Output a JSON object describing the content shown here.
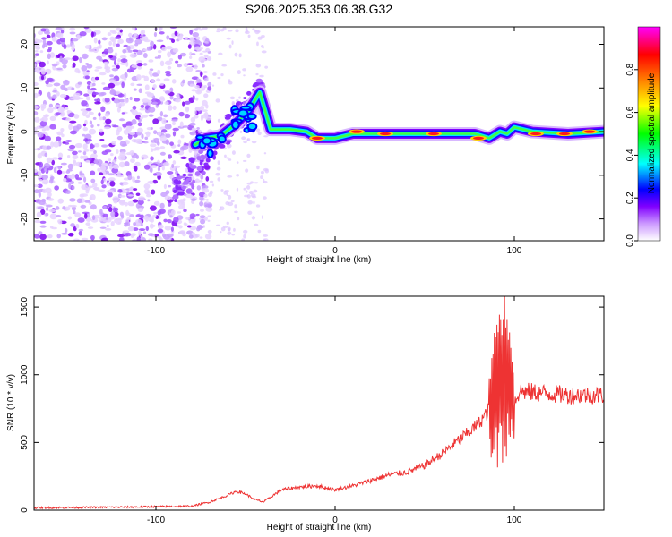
{
  "title": "S206.2025.353.06.38.G32",
  "chart_data": [
    {
      "type": "heatmap",
      "name": "spectrogram",
      "xlabel": "Height of straight line (km)",
      "ylabel": "Frequency (Hz)",
      "xlim": [
        -168,
        150
      ],
      "ylim": [
        -25,
        24
      ],
      "xticks": [
        -100,
        0,
        100
      ],
      "xtick_labels": [
        "-100",
        "0",
        "100"
      ],
      "yticks": [
        -20,
        -10,
        0,
        10,
        20
      ],
      "ytick_labels": [
        "-20",
        "-10",
        "0",
        "10",
        "20"
      ],
      "colorbar": {
        "label": "Normalized spectral amplitude",
        "range": [
          0.0,
          1.0
        ],
        "ticks": [
          0.0,
          0.2,
          0.4,
          0.6,
          0.8
        ],
        "tick_labels": [
          "0.0",
          "0.2",
          "0.4",
          "0.6",
          "0.8"
        ],
        "stops": [
          "#ffffff",
          "#8000ff",
          "#0000ff",
          "#00ffff",
          "#00ff00",
          "#ffff00",
          "#ff8000",
          "#ff0000",
          "#ff00ff"
        ]
      },
      "noise_region_km": [
        -168,
        -78
      ],
      "transition_region_km": [
        -78,
        -38
      ],
      "signal_track": [
        {
          "x": -78,
          "f": -3.0
        },
        {
          "x": -72,
          "f": -1.5
        },
        {
          "x": -64,
          "f": -1.0
        },
        {
          "x": -56,
          "f": 1.5
        },
        {
          "x": -48,
          "f": 5.0
        },
        {
          "x": -42,
          "f": 9.0
        },
        {
          "x": -36,
          "f": 0.5
        },
        {
          "x": -25,
          "f": 0.5
        },
        {
          "x": -16,
          "f": 0.0
        },
        {
          "x": -10,
          "f": -1.5
        },
        {
          "x": 0,
          "f": -1.5
        },
        {
          "x": 10,
          "f": -0.5
        },
        {
          "x": 30,
          "f": -0.5
        },
        {
          "x": 60,
          "f": -0.5
        },
        {
          "x": 78,
          "f": -0.5
        },
        {
          "x": 86,
          "f": -1.5
        },
        {
          "x": 92,
          "f": 0.0
        },
        {
          "x": 96,
          "f": -0.5
        },
        {
          "x": 100,
          "f": 1.0
        },
        {
          "x": 110,
          "f": 0.0
        },
        {
          "x": 130,
          "f": -0.5
        },
        {
          "x": 150,
          "f": 0.0
        }
      ],
      "hot_spots": [
        {
          "x": -10,
          "f": -1.5
        },
        {
          "x": 12,
          "f": 0.0
        },
        {
          "x": 28,
          "f": -0.5
        },
        {
          "x": 55,
          "f": -0.5
        },
        {
          "x": 80,
          "f": -1.5
        },
        {
          "x": 112,
          "f": -0.5
        },
        {
          "x": 128,
          "f": -0.5
        },
        {
          "x": 142,
          "f": 0.0
        }
      ]
    },
    {
      "type": "line",
      "name": "snr",
      "xlabel": "Height of straight line (km)",
      "ylabel": "SNR (10 * v/v)",
      "xlim": [
        -168,
        150
      ],
      "ylim": [
        0,
        1580
      ],
      "xticks": [
        -100,
        0,
        100
      ],
      "xtick_labels": [
        "-100",
        "0",
        "100"
      ],
      "yticks": [
        0,
        500,
        1000,
        1500
      ],
      "ytick_labels": [
        "0",
        "500",
        "1000",
        "1500"
      ],
      "line_color": "#ee3333",
      "series": [
        {
          "name": "SNR",
          "x": [
            -168,
            -140,
            -110,
            -80,
            -70,
            -60,
            -55,
            -50,
            -45,
            -40,
            -30,
            -20,
            -10,
            0,
            10,
            20,
            30,
            40,
            50,
            60,
            70,
            75,
            80,
            85,
            88,
            91,
            94,
            97,
            100,
            103,
            110,
            120,
            130,
            140,
            150
          ],
          "y": [
            18,
            20,
            24,
            30,
            60,
            110,
            140,
            120,
            80,
            60,
            150,
            170,
            180,
            150,
            180,
            220,
            260,
            280,
            330,
            420,
            530,
            580,
            640,
            720,
            820,
            900,
            1050,
            1000,
            800,
            880,
            870,
            860,
            850,
            850,
            850
          ]
        }
      ],
      "oscillation_region_km": [
        86,
        100
      ]
    }
  ]
}
